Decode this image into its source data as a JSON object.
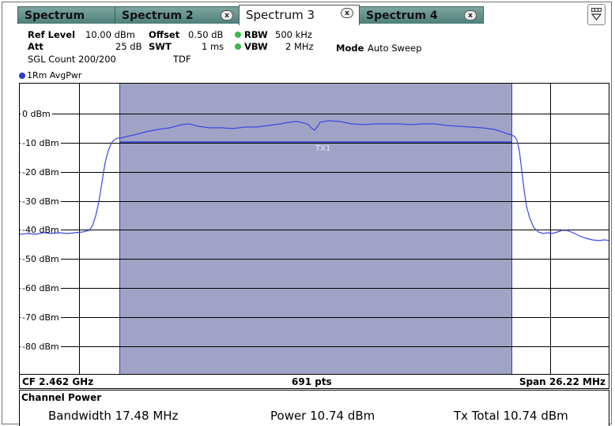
{
  "tabs": [
    {
      "label": "Spectrum"
    },
    {
      "label": "Spectrum 2",
      "close": "x"
    },
    {
      "label": "Spectrum 3",
      "close": "x"
    },
    {
      "label": "Spectrum 4",
      "close": "x"
    }
  ],
  "settings": {
    "ref_level_label": "Ref Level",
    "ref_level_value": "10.00 dBm",
    "offset_label": "Offset",
    "offset_value": "0.50 dB",
    "rbw_label": "RBW",
    "rbw_value": "500 kHz",
    "att_label": "Att",
    "att_value": "25 dB",
    "swt_label": "SWT",
    "swt_value": "1 ms",
    "vbw_label": "VBW",
    "vbw_value": "2 MHz",
    "mode_label": "Mode",
    "mode_value": "Auto Sweep",
    "sgl_count": "SGL Count 200/200",
    "tdf": "TDF"
  },
  "trace": {
    "label": "1Rm AvgPwr",
    "color": "#2a3bd6"
  },
  "diagram": {
    "y_labels": [
      "0 dBm",
      "-10 dBm",
      "-20 dBm",
      "-30 dBm",
      "-40 dBm",
      "-50 dBm",
      "-60 dBm",
      "-70 dBm",
      "-80 dBm"
    ],
    "channel_label": "TX1",
    "band_color": "#a1a3c6"
  },
  "footer": {
    "cf": "CF 2.462 GHz",
    "points": "691 pts",
    "span": "Span 26.22 MHz"
  },
  "results": {
    "title": "Channel Power",
    "bandwidth": "Bandwidth  17.48 MHz",
    "power": "Power  10.74 dBm",
    "tx_total": "Tx Total  10.74 dBm"
  }
}
